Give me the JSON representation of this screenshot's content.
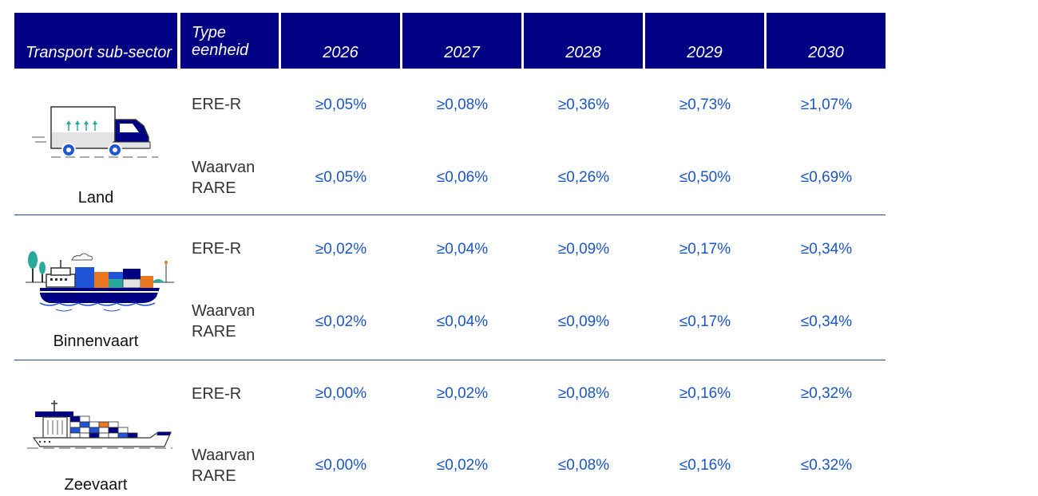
{
  "header": {
    "sector": "Transport sub-sector",
    "type_line1": "Type",
    "type_line2": "eenheid",
    "years": [
      "2026",
      "2027",
      "2028",
      "2029",
      "2030"
    ]
  },
  "sectors": [
    {
      "label": "Land",
      "icon": "truck-icon",
      "rows": [
        {
          "type": [
            "ERE-R"
          ],
          "values": [
            "≥0,05%",
            "≥0,08%",
            "≥0,36%",
            "≥0,73%",
            "≥1,07%"
          ]
        },
        {
          "type": [
            "Waarvan",
            "RARE"
          ],
          "values": [
            "≤0,05%",
            "≤0,06%",
            "≤0,26%",
            "≤0,50%",
            "≤0,69%"
          ]
        }
      ]
    },
    {
      "label": "Binnenvaart",
      "icon": "barge-icon",
      "rows": [
        {
          "type": [
            "ERE-R"
          ],
          "values": [
            "≥0,02%",
            "≥0,04%",
            "≥0,09%",
            "≥0,17%",
            "≥0,34%"
          ]
        },
        {
          "type": [
            "Waarvan",
            "RARE"
          ],
          "values": [
            "≤0,02%",
            "≤0,04%",
            "≤0,09%",
            "≤0,17%",
            "≤0,34%"
          ]
        }
      ]
    },
    {
      "label": "Zeevaart",
      "icon": "container-ship-icon",
      "rows": [
        {
          "type": [
            "ERE-R"
          ],
          "values": [
            "≥0,00%",
            "≥0,02%",
            "≥0,08%",
            "≥0,16%",
            "≥0,32%"
          ]
        },
        {
          "type": [
            "Waarvan",
            "RARE"
          ],
          "values": [
            "≤0,00%",
            "≤0,02%",
            "≤0,08%",
            "≤0,16%",
            "≤0.32%"
          ]
        }
      ]
    }
  ],
  "colors": {
    "header_bg": "#000082",
    "value_text": "#1a56c8",
    "separator": "#2b4aa0"
  }
}
